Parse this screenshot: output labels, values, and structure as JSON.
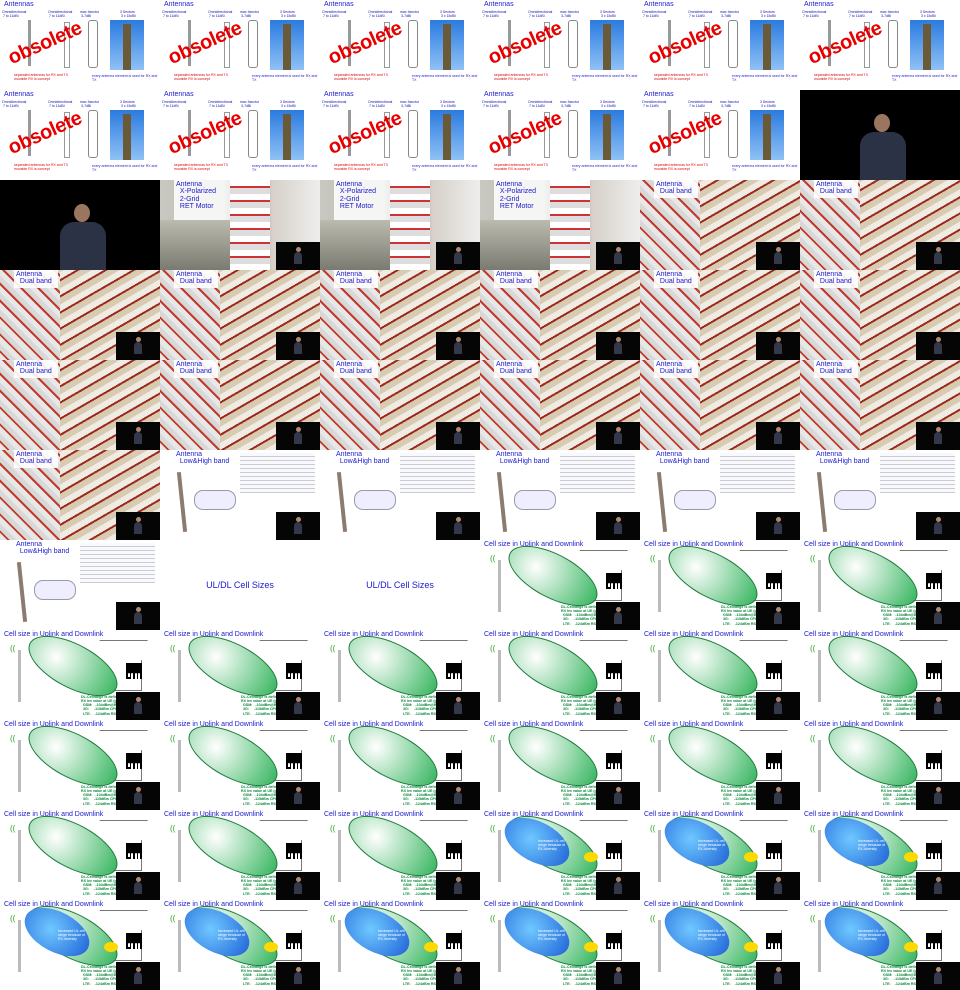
{
  "sheet": {
    "cols": 6,
    "cells": [
      {
        "type": "antennas",
        "title": "Antennas"
      },
      {
        "type": "antennas",
        "title": "Antennas"
      },
      {
        "type": "antennas",
        "title": "Antennas"
      },
      {
        "type": "antennas",
        "title": "Antennas"
      },
      {
        "type": "antennas",
        "title": "Antennas"
      },
      {
        "type": "antennas",
        "title": "Antennas"
      },
      {
        "type": "antennas",
        "title": "Antennas"
      },
      {
        "type": "antennas",
        "title": "Antennas"
      },
      {
        "type": "antennas",
        "title": "Antennas"
      },
      {
        "type": "antennas",
        "title": "Antennas"
      },
      {
        "type": "antennas",
        "title": "Antennas"
      },
      {
        "type": "speaker",
        "title": ""
      },
      {
        "type": "speaker",
        "title": ""
      },
      {
        "type": "xpol",
        "title": "Antenna\n  X-Polarized\n  2-Grid\n  RET Motor"
      },
      {
        "type": "xpol",
        "title": "Antenna\n  X-Polarized\n  2-Grid\n  RET Motor"
      },
      {
        "type": "xpol",
        "title": "Antenna\n  X-Polarized\n  2-Grid\n  RET Motor"
      },
      {
        "type": "dual",
        "title": "Antenna\n  Dual band"
      },
      {
        "type": "dual",
        "title": "Antenna\n  Dual band"
      },
      {
        "type": "dual",
        "title": "Antenna\n  Dual band"
      },
      {
        "type": "dual",
        "title": "Antenna\n  Dual band"
      },
      {
        "type": "dual",
        "title": "Antenna\n  Dual band"
      },
      {
        "type": "dual",
        "title": "Antenna\n  Dual band"
      },
      {
        "type": "dual",
        "title": "Antenna\n  Dual band"
      },
      {
        "type": "dual",
        "title": "Antenna\n  Dual band"
      },
      {
        "type": "dual",
        "title": "Antenna\n  Dual band"
      },
      {
        "type": "dual",
        "title": "Antenna\n  Dual band"
      },
      {
        "type": "dual",
        "title": "Antenna\n  Dual band"
      },
      {
        "type": "dual",
        "title": "Antenna\n  Dual band"
      },
      {
        "type": "dual",
        "title": "Antenna\n  Dual band"
      },
      {
        "type": "dual",
        "title": "Antenna\n  Dual band"
      },
      {
        "type": "dual",
        "title": "Antenna\n  Dual band"
      },
      {
        "type": "lowhigh",
        "title": "Antenna\n  Low&High band"
      },
      {
        "type": "lowhigh",
        "title": "Antenna\n  Low&High band"
      },
      {
        "type": "lowhigh",
        "title": "Antenna\n  Low&High band"
      },
      {
        "type": "lowhigh",
        "title": "Antenna\n  Low&High band"
      },
      {
        "type": "lowhigh",
        "title": "Antenna\n  Low&High band"
      },
      {
        "type": "lowhigh",
        "title": "Antenna\n  Low&High band"
      },
      {
        "type": "sizes",
        "title": "UL/DL Cell Sizes"
      },
      {
        "type": "sizes",
        "title": "UL/DL Cell Sizes"
      },
      {
        "type": "cell",
        "title": "Cell size in Uplink and Downlink"
      },
      {
        "type": "cell",
        "title": "Cell size in Uplink and Downlink"
      },
      {
        "type": "cell",
        "title": "Cell size in Uplink and Downlink"
      },
      {
        "type": "cell",
        "title": "Cell size in Uplink and Downlink"
      },
      {
        "type": "cell",
        "title": "Cell size in Uplink and Downlink"
      },
      {
        "type": "cell",
        "title": "Cell size in Uplink and Downlink"
      },
      {
        "type": "cell",
        "title": "Cell size in Uplink and Downlink"
      },
      {
        "type": "cell",
        "title": "Cell size in Uplink and Downlink"
      },
      {
        "type": "cell",
        "title": "Cell size in Uplink and Downlink"
      },
      {
        "type": "cell",
        "title": "Cell size in Uplink and Downlink"
      },
      {
        "type": "cell",
        "title": "Cell size in Uplink and Downlink"
      },
      {
        "type": "cell",
        "title": "Cell size in Uplink and Downlink"
      },
      {
        "type": "cell",
        "title": "Cell size in Uplink and Downlink"
      },
      {
        "type": "cell",
        "title": "Cell size in Uplink and Downlink"
      },
      {
        "type": "cell",
        "title": "Cell size in Uplink and Downlink"
      },
      {
        "type": "cell",
        "title": "Cell size in Uplink and Downlink"
      },
      {
        "type": "cell",
        "title": "Cell size in Uplink and Downlink"
      },
      {
        "type": "cell",
        "title": "Cell size in Uplink and Downlink"
      },
      {
        "type": "cellblue",
        "title": "Cell size in Uplink and Downlink"
      },
      {
        "type": "cellblue",
        "title": "Cell size in Uplink and Downlink"
      },
      {
        "type": "cellblue",
        "title": "Cell size in Uplink and Downlink"
      },
      {
        "type": "cellblue",
        "title": "Cell size in Uplink and Downlink"
      },
      {
        "type": "cellblue",
        "title": "Cell size in Uplink and Downlink"
      },
      {
        "type": "cellblue",
        "title": "Cell size in Uplink and Downlink"
      },
      {
        "type": "cellblue",
        "title": "Cell size in Uplink and Downlink"
      },
      {
        "type": "cellblue",
        "title": "Cell size in Uplink and Downlink"
      },
      {
        "type": "cellblue",
        "title": "Cell size in Uplink and Downlink"
      }
    ]
  },
  "text": {
    "obsolete": "obsolete",
    "antenna_types": [
      "Omnidirectional\n 7 to 11dBi",
      "Omnidirectional\n 7 to 11dBi",
      "max 4sector\n 3-7dBi",
      "3 Sectors\n 3 x 15dBi"
    ],
    "antenna_foot": "separated antennas for RX and TX\nmovable RX is concept",
    "antenna_foot2": "every antenna element is used for RX and TX",
    "dl_note": "DL-Cellrange is defined by required min\nRX lev value at UE (given by network):\n  GSM:   -104dBm@BCCH\n  3G:     -115dBm CPICH\n  LTE:    -124dBm RSRP",
    "blue_note": "Increased UL cell\nrange because of\nRX-diversity"
  }
}
